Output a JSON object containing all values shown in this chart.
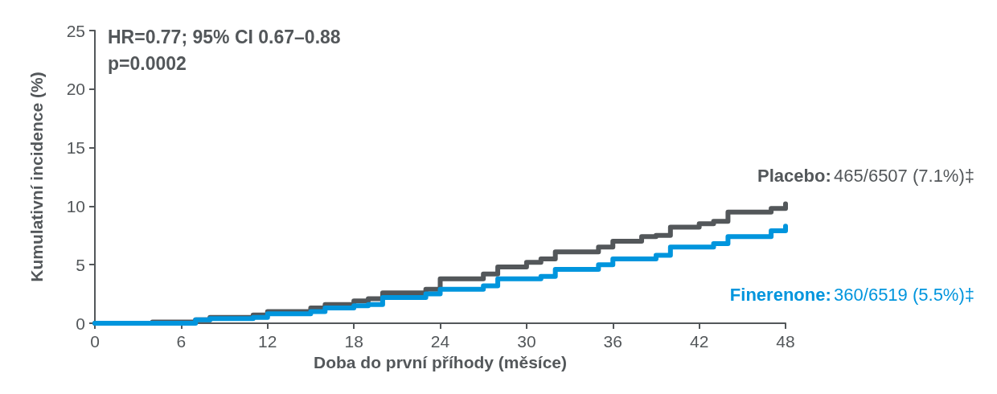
{
  "chart_data": {
    "type": "step",
    "xlabel": "Doba do první příhody (měsíce)",
    "ylabel": "Kumulativní incidence (%)",
    "annotations": [
      "HR=0.77; 95% CI 0.67–0.88",
      "p=0.0002",
      "465/6507 (7.1%)‡",
      "360/6519 (5.5%)‡"
    ],
    "series": [
      {
        "name": "Placebo:",
        "color": "#53575a",
        "x": [
          0,
          4,
          7,
          8,
          11,
          12,
          15,
          16,
          18,
          19,
          20,
          23,
          24,
          27,
          28,
          30,
          31,
          32,
          35,
          36,
          38,
          39,
          40,
          42,
          43,
          44,
          47,
          48
        ],
        "values": [
          0,
          0.1,
          0.3,
          0.5,
          0.7,
          1.0,
          1.3,
          1.6,
          1.9,
          2.1,
          2.6,
          2.9,
          3.8,
          4.2,
          4.8,
          5.2,
          5.5,
          6.1,
          6.5,
          7.0,
          7.4,
          7.5,
          8.2,
          8.5,
          8.7,
          9.5,
          9.8,
          10.2
        ]
      },
      {
        "name": "Finerenone:",
        "color": "#0095dd",
        "x": [
          0,
          7,
          8,
          11,
          12,
          15,
          16,
          18,
          19,
          20,
          23,
          24,
          27,
          28,
          31,
          32,
          35,
          36,
          39,
          40,
          43,
          44,
          47,
          48
        ],
        "values": [
          0,
          0.3,
          0.4,
          0.5,
          0.8,
          1.0,
          1.3,
          1.5,
          1.6,
          2.2,
          2.5,
          2.9,
          3.2,
          3.8,
          4.0,
          4.6,
          5.0,
          5.5,
          5.8,
          6.5,
          6.8,
          7.4,
          7.9,
          8.3
        ]
      }
    ],
    "xlim": [
      0,
      48
    ],
    "xticks": [
      0,
      6,
      12,
      18,
      24,
      30,
      36,
      42,
      48
    ],
    "ylim": [
      0,
      25
    ],
    "yticks": [
      0,
      5,
      10,
      15,
      20,
      25
    ],
    "grid": false,
    "legend": false
  }
}
